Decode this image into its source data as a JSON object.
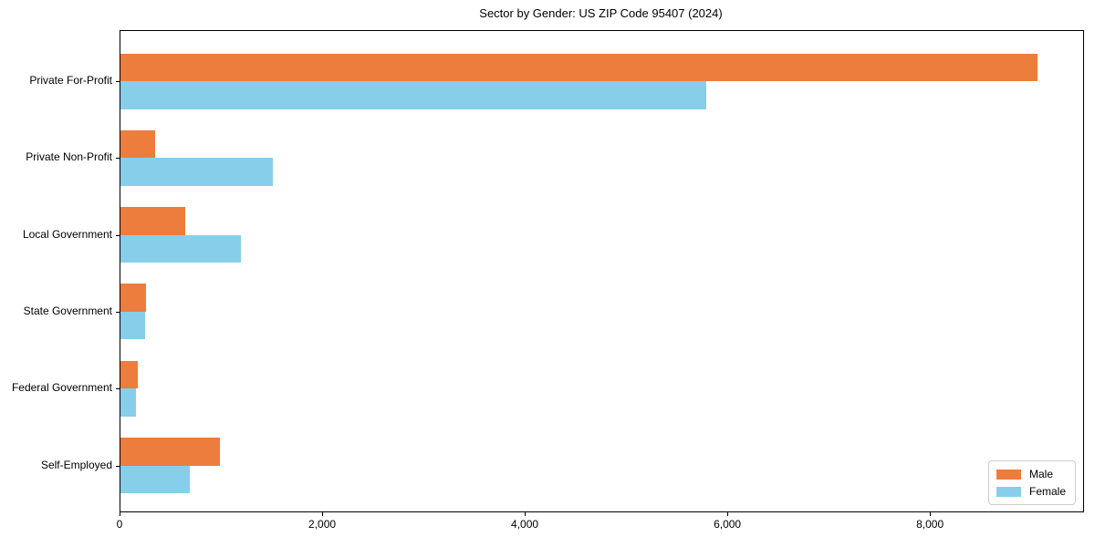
{
  "title": "Sector by Gender: US ZIP Code 95407 (2024)",
  "colors": {
    "male": "#ED7D3C",
    "female": "#87CEEB",
    "spine": "#000000",
    "legend_border": "#CCCCCC"
  },
  "chart_data": {
    "type": "bar",
    "orientation": "horizontal",
    "title": "Sector by Gender: US ZIP Code 95407 (2024)",
    "xlabel": "",
    "ylabel": "",
    "categories": [
      "Private For-Profit",
      "Private Non-Profit",
      "Local Government",
      "State Government",
      "Federal Government",
      "Self-Employed"
    ],
    "series": [
      {
        "name": "Male",
        "color": "#ED7D3C",
        "values": [
          9050,
          340,
          640,
          250,
          170,
          980
        ]
      },
      {
        "name": "Female",
        "color": "#87CEEB",
        "values": [
          5785,
          1505,
          1190,
          240,
          155,
          685
        ]
      }
    ],
    "xlim": [
      0,
      9503
    ],
    "xticks": [
      0,
      2000,
      4000,
      6000,
      8000
    ],
    "xtick_labels": [
      "0",
      "2,000",
      "4,000",
      "6,000",
      "8,000"
    ],
    "grid": false,
    "legend_position": "lower right"
  },
  "legend": {
    "items": [
      "Male",
      "Female"
    ]
  }
}
